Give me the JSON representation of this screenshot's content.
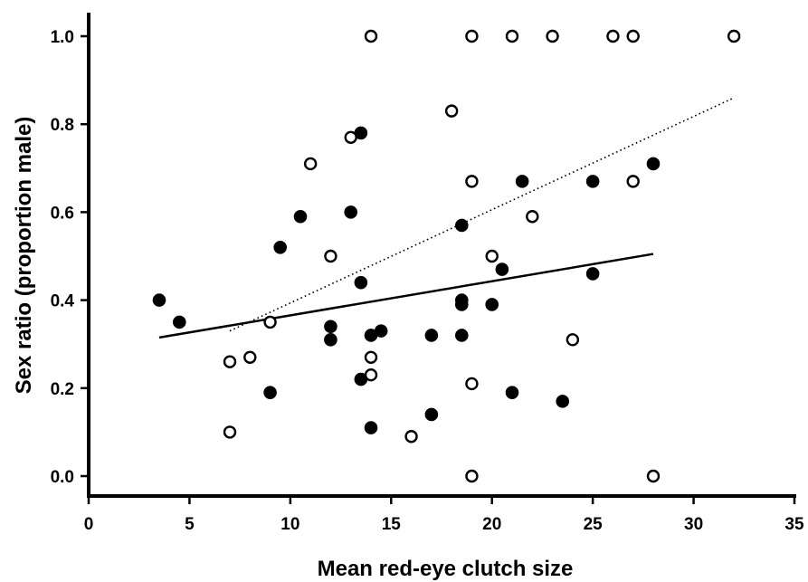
{
  "chart_data": {
    "type": "scatter",
    "title": "",
    "xlabel": "Mean red-eye clutch size",
    "ylabel": "Sex ratio (proportion male)",
    "xlim": [
      0,
      35
    ],
    "ylim": [
      0.0,
      1.0
    ],
    "x_ticks": [
      "0",
      "5",
      "10",
      "15",
      "20",
      "25",
      "30",
      "35"
    ],
    "y_ticks": [
      "0.0",
      "0.2",
      "0.4",
      "0.6",
      "0.8",
      "1.0"
    ],
    "grid": false,
    "legend": "none",
    "series": [
      {
        "marker": "filled-circle",
        "color": "#000000",
        "points": [
          [
            3.5,
            0.4
          ],
          [
            4.5,
            0.35
          ],
          [
            9.0,
            0.19
          ],
          [
            9.5,
            0.52
          ],
          [
            10.5,
            0.59
          ],
          [
            12.0,
            0.34
          ],
          [
            12.0,
            0.31
          ],
          [
            13.0,
            0.6
          ],
          [
            13.5,
            0.78
          ],
          [
            13.5,
            0.44
          ],
          [
            13.5,
            0.22
          ],
          [
            14.0,
            0.32
          ],
          [
            14.0,
            0.11
          ],
          [
            14.5,
            0.33
          ],
          [
            17.0,
            0.32
          ],
          [
            17.0,
            0.14
          ],
          [
            18.5,
            0.57
          ],
          [
            18.5,
            0.4
          ],
          [
            18.5,
            0.39
          ],
          [
            18.5,
            0.32
          ],
          [
            20.0,
            0.39
          ],
          [
            20.5,
            0.47
          ],
          [
            21.0,
            0.19
          ],
          [
            21.5,
            0.67
          ],
          [
            23.5,
            0.17
          ],
          [
            25.0,
            0.67
          ],
          [
            25.0,
            0.46
          ],
          [
            28.0,
            0.71
          ]
        ],
        "trend": {
          "style": "solid",
          "x": [
            3.5,
            28.0
          ],
          "y": [
            0.315,
            0.505
          ]
        }
      },
      {
        "marker": "open-circle",
        "color": "#000000",
        "points": [
          [
            7.0,
            0.26
          ],
          [
            7.0,
            0.1
          ],
          [
            8.0,
            0.27
          ],
          [
            9.0,
            0.35
          ],
          [
            11.0,
            0.71
          ],
          [
            12.0,
            0.5
          ],
          [
            13.0,
            0.77
          ],
          [
            14.0,
            1.0
          ],
          [
            14.0,
            0.27
          ],
          [
            14.0,
            0.23
          ],
          [
            16.0,
            0.09
          ],
          [
            18.0,
            0.83
          ],
          [
            19.0,
            1.0
          ],
          [
            19.0,
            0.67
          ],
          [
            19.0,
            0.21
          ],
          [
            19.0,
            0.0
          ],
          [
            20.0,
            0.5
          ],
          [
            21.0,
            1.0
          ],
          [
            22.0,
            0.59
          ],
          [
            23.0,
            1.0
          ],
          [
            24.0,
            0.31
          ],
          [
            26.0,
            1.0
          ],
          [
            27.0,
            1.0
          ],
          [
            27.0,
            0.67
          ],
          [
            28.0,
            0.0
          ],
          [
            32.0,
            1.0
          ]
        ],
        "trend": {
          "style": "dotted",
          "x": [
            7.0,
            32.0
          ],
          "y": [
            0.33,
            0.86
          ]
        }
      }
    ]
  }
}
